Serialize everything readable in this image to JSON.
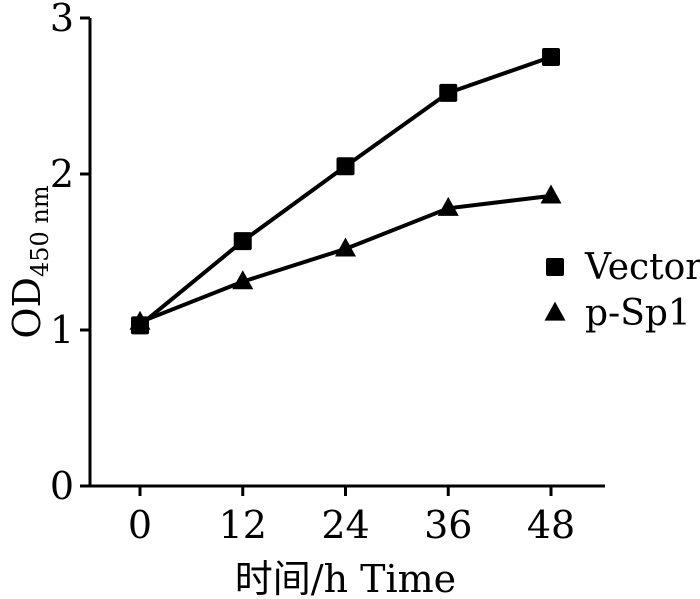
{
  "chart_data": {
    "type": "line",
    "title": "",
    "xlabel": "时间/h Time",
    "ylabel_main": "OD",
    "ylabel_sub": "450 nm",
    "x": [
      0,
      12,
      24,
      36,
      48
    ],
    "xticks": [
      "0",
      "12",
      "24",
      "36",
      "48"
    ],
    "yticks": [
      "0",
      "1",
      "2",
      "3"
    ],
    "ylim": [
      0,
      3
    ],
    "grid": false,
    "legend_position": "right",
    "series": [
      {
        "name": "Vector",
        "marker": "square",
        "values": [
          1.03,
          1.57,
          2.05,
          2.52,
          2.75
        ]
      },
      {
        "name": "p-Sp1",
        "marker": "triangle",
        "values": [
          1.05,
          1.31,
          1.52,
          1.78,
          1.86
        ]
      }
    ]
  }
}
